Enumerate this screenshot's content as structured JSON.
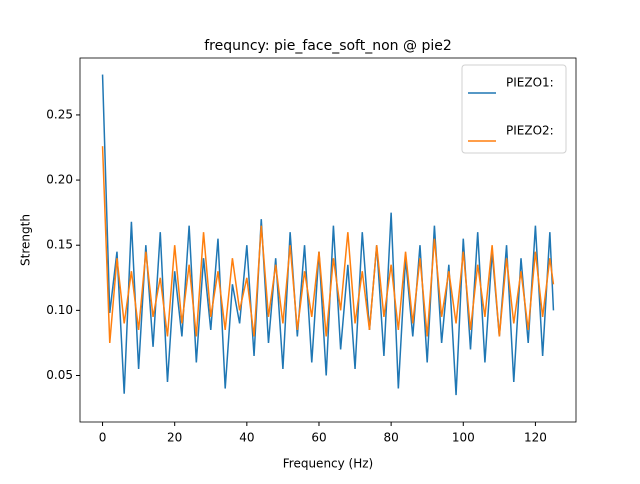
{
  "chart_data": {
    "type": "line",
    "title": "frequncy: pie_face_soft_non @ pie2",
    "x_label": "Frequency (Hz)",
    "y_label": "Strength",
    "x": [
      0,
      2,
      4,
      6,
      8,
      10,
      12,
      14,
      16,
      18,
      20,
      22,
      24,
      26,
      28,
      30,
      32,
      34,
      36,
      38,
      40,
      42,
      44,
      46,
      48,
      50,
      52,
      54,
      56,
      58,
      60,
      62,
      64,
      66,
      68,
      70,
      72,
      74,
      76,
      78,
      80,
      82,
      84,
      86,
      88,
      90,
      92,
      94,
      96,
      98,
      100,
      102,
      104,
      106,
      108,
      110,
      112,
      114,
      116,
      118,
      120,
      122,
      124,
      125
    ],
    "series": [
      {
        "name": "PIEZO1:",
        "color": "#1f77b4",
        "values": [
          0.281,
          0.098,
          0.145,
          0.036,
          0.168,
          0.055,
          0.15,
          0.072,
          0.16,
          0.045,
          0.13,
          0.08,
          0.165,
          0.06,
          0.14,
          0.085,
          0.155,
          0.04,
          0.12,
          0.09,
          0.15,
          0.065,
          0.17,
          0.075,
          0.14,
          0.055,
          0.16,
          0.08,
          0.15,
          0.06,
          0.145,
          0.05,
          0.165,
          0.07,
          0.135,
          0.055,
          0.16,
          0.085,
          0.15,
          0.065,
          0.175,
          0.04,
          0.14,
          0.08,
          0.15,
          0.06,
          0.165,
          0.075,
          0.135,
          0.035,
          0.155,
          0.07,
          0.16,
          0.06,
          0.145,
          0.08,
          0.15,
          0.045,
          0.14,
          0.075,
          0.165,
          0.065,
          0.16,
          0.1
        ]
      },
      {
        "name": "PIEZO2:",
        "color": "#ff7f0e",
        "values": [
          0.226,
          0.075,
          0.14,
          0.09,
          0.13,
          0.085,
          0.145,
          0.095,
          0.125,
          0.08,
          0.15,
          0.09,
          0.135,
          0.08,
          0.16,
          0.095,
          0.13,
          0.085,
          0.14,
          0.1,
          0.125,
          0.08,
          0.165,
          0.095,
          0.135,
          0.09,
          0.15,
          0.085,
          0.13,
          0.095,
          0.145,
          0.08,
          0.14,
          0.1,
          0.16,
          0.09,
          0.13,
          0.085,
          0.15,
          0.095,
          0.135,
          0.085,
          0.145,
          0.09,
          0.14,
          0.08,
          0.155,
          0.095,
          0.13,
          0.09,
          0.145,
          0.085,
          0.135,
          0.095,
          0.15,
          0.08,
          0.14,
          0.09,
          0.13,
          0.085,
          0.145,
          0.095,
          0.14,
          0.12
        ]
      }
    ],
    "xlim": [
      -6.25,
      131.25
    ],
    "xticks": [
      0,
      20,
      40,
      60,
      80,
      100,
      120
    ],
    "ylim": [
      0.0143,
      0.2937
    ],
    "yticks": [
      0.05,
      {
        "value": 0.1,
        "label": "0.10"
      },
      0.15,
      {
        "value": 0.2,
        "label": "0.20"
      },
      0.25
    ],
    "legend": "upper right",
    "grid": false
  }
}
